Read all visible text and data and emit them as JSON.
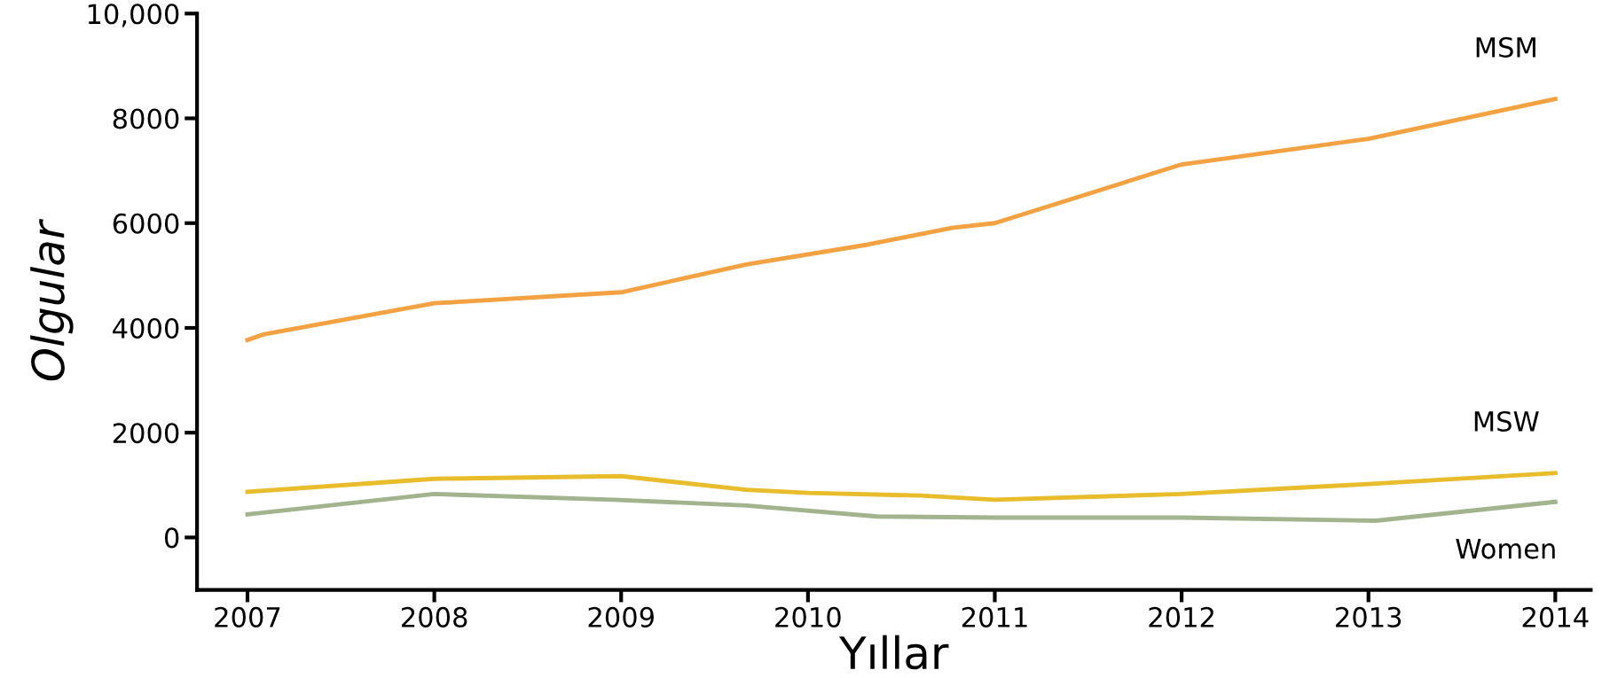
{
  "chart_data": {
    "type": "line",
    "xlabel": "Yıllar",
    "ylabel": "Olgular",
    "xlim": [
      2006.73,
      2014.19
    ],
    "ylim": [
      -1000,
      10000
    ],
    "xticks": [
      2007,
      2008,
      2009,
      2010,
      2011,
      2012,
      2013,
      2014
    ],
    "yticks": [
      0,
      2000,
      4000,
      6000,
      8000,
      {
        "value": 10000,
        "label": "10,000"
      }
    ],
    "grid": false,
    "legend": false,
    "marker": "none",
    "line_style": "solid",
    "series": [
      {
        "name": "MSM",
        "color": "#f4a142",
        "x": [
          2007,
          2007.09,
          2008,
          2009,
          2009.67,
          2010.32,
          2010.77,
          2011,
          2012,
          2013,
          2014
        ],
        "values": [
          3770,
          3880,
          4470,
          4680,
          5210,
          5590,
          5910,
          6000,
          7120,
          7610,
          8370
        ]
      },
      {
        "name": "MSW",
        "color": "#e8bc2a",
        "x": [
          2007,
          2008,
          2009,
          2009.67,
          2010,
          2010.6,
          2011,
          2012,
          2013,
          2014
        ],
        "values": [
          870,
          1120,
          1170,
          910,
          850,
          800,
          720,
          830,
          1020,
          1230
        ]
      },
      {
        "name": "Women",
        "color": "#a1b48e",
        "x": [
          2007,
          2008,
          2008.96,
          2009.67,
          2010.37,
          2011,
          2012,
          2013.04,
          2014
        ],
        "values": [
          440,
          830,
          720,
          610,
          400,
          380,
          380,
          320,
          680
        ]
      }
    ]
  }
}
